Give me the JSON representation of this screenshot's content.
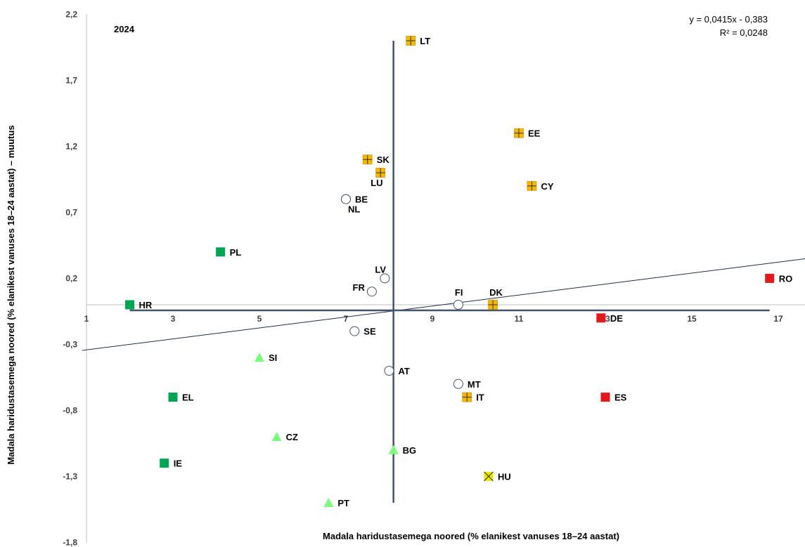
{
  "chart_data": {
    "type": "scatter",
    "title": "2024",
    "xlabel": "Madala haridustasemega noored (% elanikest vanuses 18–24 aastat)",
    "ylabel": "Madala haridustasemega noored (% elanikest vanuses 18–24 aastat) – muutus",
    "xlim": [
      1,
      18
    ],
    "ylim": [
      -1.8,
      2.2
    ],
    "x_ticks": [
      "1",
      "3",
      "5",
      "7",
      "9",
      "11",
      "13",
      "15",
      "17"
    ],
    "y_ticks": [
      "2,2",
      "1,7",
      "1,2",
      "0,7",
      "0,2",
      "-0,3",
      "-0,8",
      "-1,3",
      "-1,8"
    ],
    "y_tick_values": [
      2.2,
      1.7,
      1.2,
      0.7,
      0.2,
      -0.3,
      -0.8,
      -1.3,
      -1.8
    ],
    "grid": false,
    "trendline": {
      "equation": "y = 0,0415x - 0,383",
      "r2": "R² = 0,0248",
      "slope": 0.0415,
      "intercept": -0.383
    },
    "reference_lines": {
      "x": 8.1,
      "y": 0,
      "x_extent": [
        2,
        16.8
      ],
      "y_extent": [
        -1.5,
        2.0
      ]
    },
    "colors": {
      "dark_green": "#00a651",
      "light_green": "#7cfc7c",
      "orange": "#f5b800",
      "red": "#e31a1c",
      "yellow": "#e8e800",
      "circle": "#ffffff",
      "axis": "#44546a"
    },
    "points": [
      {
        "label": "LT",
        "x": 8.5,
        "y": 2.0,
        "marker": "orange-plus"
      },
      {
        "label": "EE",
        "x": 11.0,
        "y": 1.3,
        "marker": "orange-plus"
      },
      {
        "label": "SK",
        "x": 7.5,
        "y": 1.1,
        "marker": "orange-plus"
      },
      {
        "label": "LU",
        "x": 7.8,
        "y": 1.0,
        "marker": "orange-plus",
        "label_pos": "below"
      },
      {
        "label": "CY",
        "x": 11.3,
        "y": 0.9,
        "marker": "orange-plus"
      },
      {
        "label": "BE",
        "x": 7.0,
        "y": 0.8,
        "marker": "circle"
      },
      {
        "label": "NL",
        "x": 7.0,
        "y": 0.8,
        "marker": "circle",
        "label_pos": "below-right"
      },
      {
        "label": "PL",
        "x": 4.1,
        "y": 0.4,
        "marker": "dark-green-square"
      },
      {
        "label": "LV",
        "x": 7.9,
        "y": 0.2,
        "marker": "circle",
        "label_pos": "above-left"
      },
      {
        "label": "RO",
        "x": 16.8,
        "y": 0.2,
        "marker": "red-square"
      },
      {
        "label": "FR",
        "x": 7.6,
        "y": 0.1,
        "marker": "circle",
        "label_pos": "left"
      },
      {
        "label": "HR",
        "x": 2.0,
        "y": 0.0,
        "marker": "dark-green-square"
      },
      {
        "label": "FI",
        "x": 9.6,
        "y": 0.0,
        "marker": "circle",
        "label_pos": "above"
      },
      {
        "label": "DK",
        "x": 10.4,
        "y": 0.0,
        "marker": "orange-plus",
        "label_pos": "above"
      },
      {
        "label": "DE",
        "x": 12.9,
        "y": -0.1,
        "marker": "red-square"
      },
      {
        "label": "SE",
        "x": 7.2,
        "y": -0.2,
        "marker": "circle"
      },
      {
        "label": "SI",
        "x": 5.0,
        "y": -0.4,
        "marker": "light-green-triangle"
      },
      {
        "label": "AT",
        "x": 8.0,
        "y": -0.5,
        "marker": "circle"
      },
      {
        "label": "MT",
        "x": 9.6,
        "y": -0.6,
        "marker": "circle"
      },
      {
        "label": "EL",
        "x": 3.0,
        "y": -0.7,
        "marker": "dark-green-square"
      },
      {
        "label": "IT",
        "x": 9.8,
        "y": -0.7,
        "marker": "orange-plus"
      },
      {
        "label": "ES",
        "x": 13.0,
        "y": -0.7,
        "marker": "red-square"
      },
      {
        "label": "CZ",
        "x": 5.4,
        "y": -1.0,
        "marker": "light-green-triangle"
      },
      {
        "label": "BG",
        "x": 8.1,
        "y": -1.1,
        "marker": "light-green-triangle"
      },
      {
        "label": "IE",
        "x": 2.8,
        "y": -1.2,
        "marker": "dark-green-square"
      },
      {
        "label": "HU",
        "x": 10.3,
        "y": -1.3,
        "marker": "yellow-x"
      },
      {
        "label": "PT",
        "x": 6.6,
        "y": -1.5,
        "marker": "light-green-triangle"
      }
    ]
  }
}
